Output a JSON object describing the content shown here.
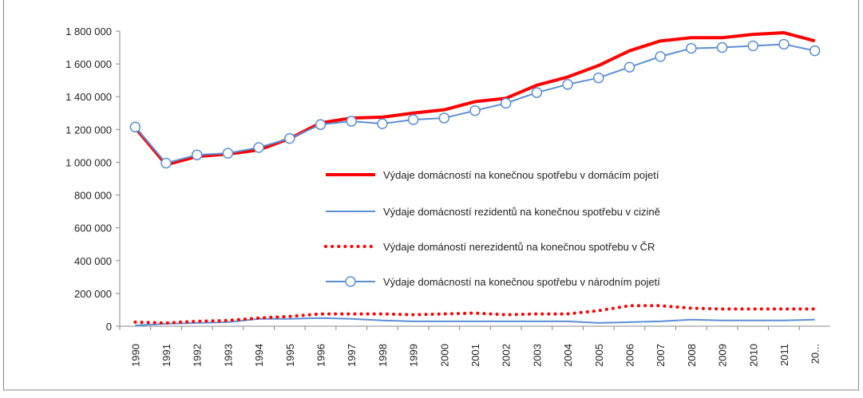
{
  "chart_data": {
    "type": "line",
    "categories": [
      "1990",
      "1991",
      "1992",
      "1993",
      "1994",
      "1995",
      "1996",
      "1997",
      "1998",
      "1999",
      "2000",
      "2001",
      "2002",
      "2003",
      "2004",
      "2005",
      "2006",
      "2007",
      "2008",
      "2009",
      "2010",
      "2011",
      "20..."
    ],
    "series": [
      {
        "name": "Výdaje domácností na konečnou spotřebu v domácím pojetí",
        "color": "#ff0000",
        "width": 4,
        "style": "solid",
        "marker": "none",
        "values": [
          1210000,
          985000,
          1035000,
          1050000,
          1075000,
          1145000,
          1240000,
          1270000,
          1275000,
          1300000,
          1320000,
          1370000,
          1390000,
          1470000,
          1520000,
          1590000,
          1680000,
          1740000,
          1760000,
          1760000,
          1780000,
          1790000,
          1740000
        ]
      },
      {
        "name": "Výdaje domácností rezidentů na konečnou spotřebu v cizině",
        "color": "#5b8fd6",
        "width": 2,
        "style": "solid",
        "marker": "none",
        "values": [
          5000,
          15000,
          20000,
          25000,
          45000,
          45000,
          50000,
          45000,
          35000,
          30000,
          30000,
          30000,
          30000,
          30000,
          30000,
          20000,
          25000,
          30000,
          40000,
          35000,
          35000,
          35000,
          40000
        ]
      },
      {
        "name": "Výdaje domáností nerezidentů na konečnou spotřebu v ČR",
        "color": "#ff0000",
        "width": 4,
        "style": "dotted",
        "marker": "none",
        "values": [
          25000,
          20000,
          30000,
          35000,
          50000,
          60000,
          75000,
          75000,
          75000,
          70000,
          75000,
          80000,
          70000,
          75000,
          75000,
          95000,
          125000,
          125000,
          110000,
          105000,
          105000,
          105000,
          105000
        ]
      },
      {
        "name": "Výdaje domácností na konečnou spotřebu v národním pojetí",
        "color": "#5b8fd6",
        "width": 2,
        "style": "solid",
        "marker": "circle",
        "values": [
          1215000,
          995000,
          1045000,
          1055000,
          1090000,
          1145000,
          1230000,
          1250000,
          1235000,
          1260000,
          1270000,
          1315000,
          1360000,
          1425000,
          1475000,
          1515000,
          1580000,
          1645000,
          1695000,
          1700000,
          1710000,
          1720000,
          1680000
        ]
      }
    ],
    "ylim": [
      0,
      1800000
    ],
    "yticks": [
      0,
      {
        "value": 200000,
        "label": "200 000"
      },
      {
        "value": 400000,
        "label": "400 000"
      },
      {
        "value": 600000,
        "label": "600 000"
      },
      {
        "value": 800000,
        "label": "800 000"
      },
      {
        "value": 1000000,
        "label": "1 000 000"
      },
      {
        "value": 1200000,
        "label": "1 200 000"
      },
      {
        "value": 1400000,
        "label": "1 400 000"
      },
      {
        "value": 1600000,
        "label": "1 600 000"
      },
      {
        "value": 1800000,
        "label": "1 800 000"
      }
    ],
    "grid": false
  }
}
